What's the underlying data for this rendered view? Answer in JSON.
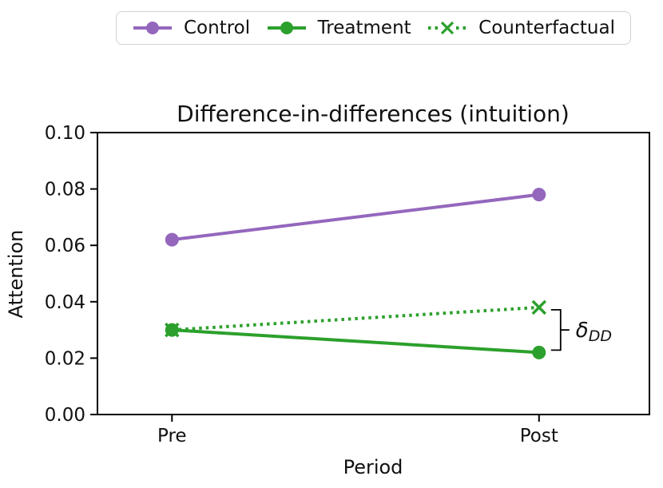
{
  "figure": {
    "title": "Difference-in-differences (intuition)",
    "xlabel": "Period",
    "ylabel": "Attention"
  },
  "legend": {
    "items": [
      {
        "label": "Control",
        "color": "#9467bd",
        "line": "solid",
        "marker": "circle"
      },
      {
        "label": "Treatment",
        "color": "#2ca02c",
        "line": "solid",
        "marker": "circle"
      },
      {
        "label": "Counterfactual",
        "color": "#2ca02c",
        "line": "dotted",
        "marker": "x"
      }
    ]
  },
  "annotation": {
    "symbol": "δ",
    "subscript": "DD"
  },
  "chart_data": {
    "type": "line",
    "title": "Difference-in-differences (intuition)",
    "xlabel": "Period",
    "ylabel": "Attention",
    "categories": [
      "Pre",
      "Post"
    ],
    "series": [
      {
        "name": "Control",
        "values": [
          0.062,
          0.078
        ],
        "color": "#9467bd",
        "line": "solid",
        "marker": "circle"
      },
      {
        "name": "Treatment",
        "values": [
          0.03,
          0.022
        ],
        "color": "#2ca02c",
        "line": "solid",
        "marker": "circle"
      },
      {
        "name": "Counterfactual",
        "values": [
          0.03,
          0.038
        ],
        "color": "#2ca02c",
        "line": "dotted",
        "marker": "x"
      }
    ],
    "ylim": [
      0.0,
      0.1
    ],
    "yticks": [
      0.0,
      0.02,
      0.04,
      0.06,
      0.08,
      0.1
    ],
    "ytick_labels": [
      "0.00",
      "0.02",
      "0.04",
      "0.06",
      "0.08",
      "0.10"
    ],
    "grid": false,
    "legend_position": "top-center-outside-axes",
    "annotation": {
      "text": "δ_DD",
      "between_series": [
        "Counterfactual",
        "Treatment"
      ],
      "at_category": "Post"
    }
  }
}
